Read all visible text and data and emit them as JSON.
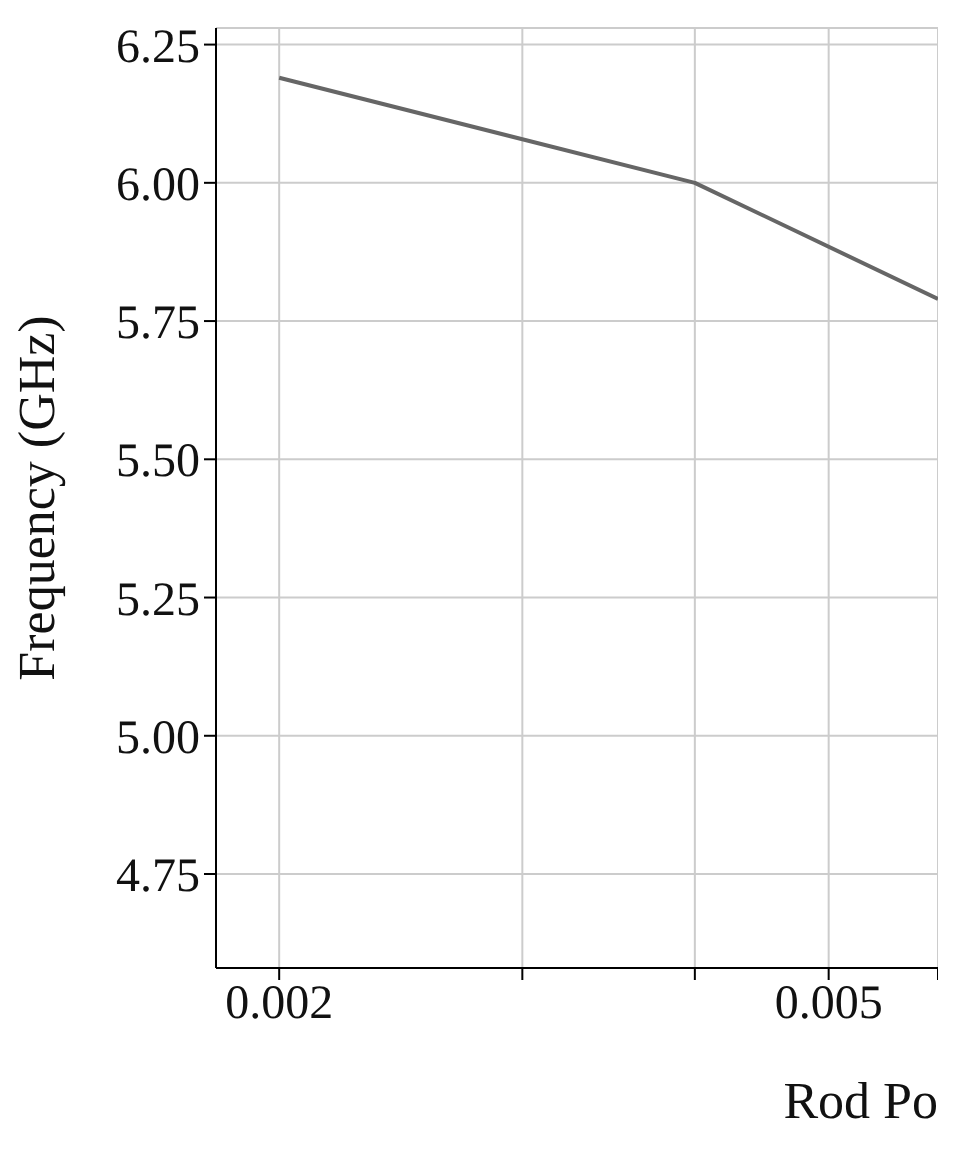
{
  "chart_data": {
    "type": "line",
    "xlabel": "Rod Po",
    "ylabel": "Frequency (GHz)",
    "log": "x",
    "x": [
      0.002,
      0.004,
      0.006
    ],
    "series": [
      {
        "color": "#666666",
        "values": [
          6.19,
          6.0,
          5.79
        ]
      }
    ],
    "xlim": [
      0.0018,
      0.006
    ],
    "ylim": [
      4.58,
      6.28
    ],
    "xticks": [
      0.002,
      {
        "value": 0.003,
        "label": null
      },
      {
        "value": 0.004,
        "label": null
      },
      0.005,
      {
        "value": 0.006,
        "label": null
      }
    ],
    "yticks": [
      4.75,
      {
        "value": 5,
        "label": "5.00"
      },
      5.25,
      {
        "value": 5.5,
        "label": "5.50"
      },
      5.75,
      {
        "value": 6,
        "label": "6.00"
      },
      6.25
    ],
    "grid": true,
    "marker": "none",
    "line_style": "solid"
  }
}
